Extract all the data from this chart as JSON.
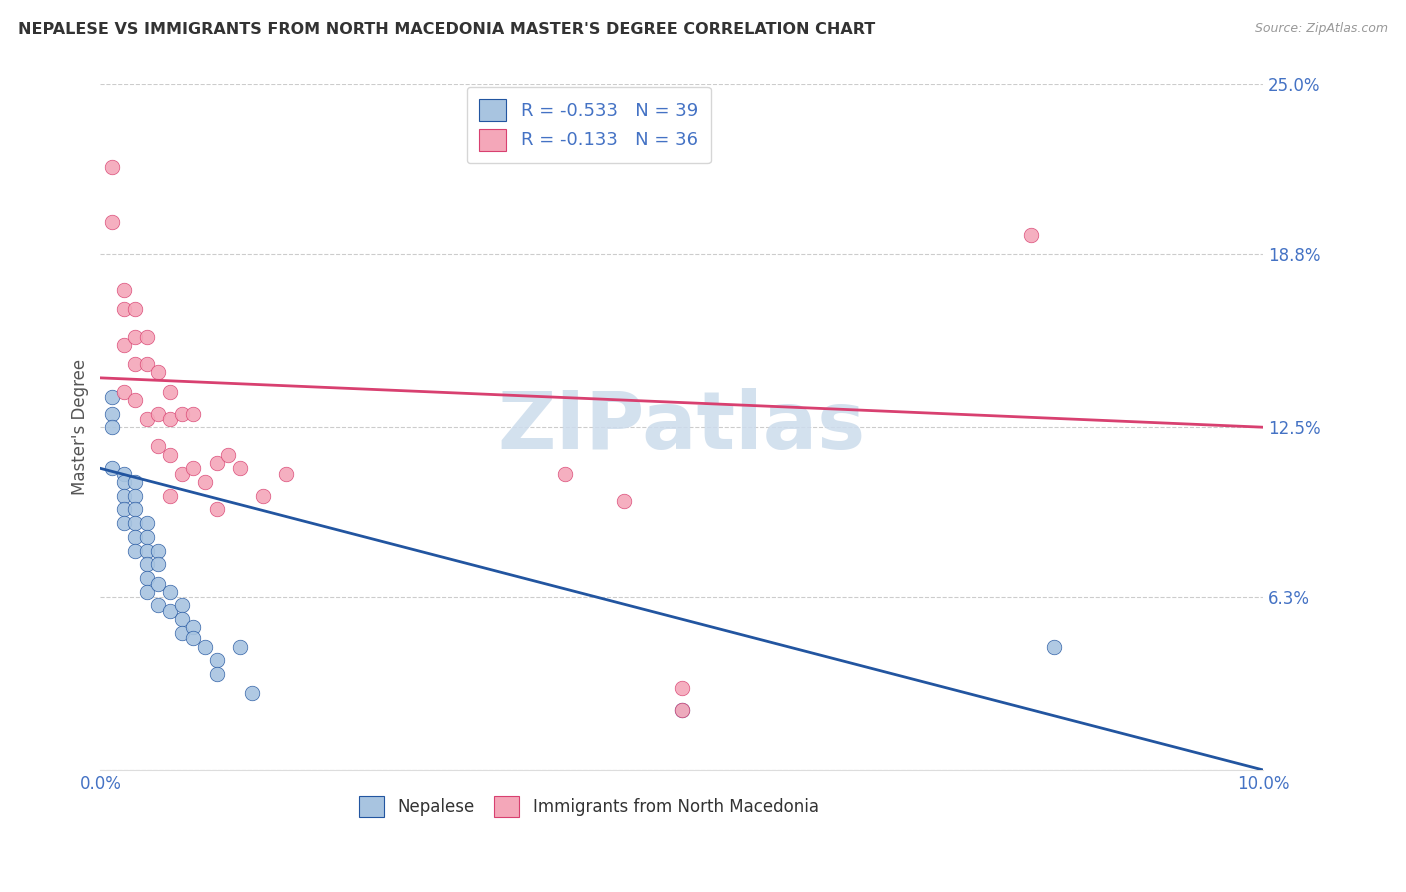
{
  "title": "NEPALESE VS IMMIGRANTS FROM NORTH MACEDONIA MASTER'S DEGREE CORRELATION CHART",
  "source": "Source: ZipAtlas.com",
  "ylabel": "Master's Degree",
  "xlim": [
    0.0,
    0.1
  ],
  "ylim": [
    0.0,
    0.25
  ],
  "xticks": [
    0.0,
    0.02,
    0.04,
    0.06,
    0.08,
    0.1
  ],
  "xtick_labels": [
    "0.0%",
    "",
    "",
    "",
    "",
    "10.0%"
  ],
  "yticks": [
    0.0,
    0.063,
    0.125,
    0.188,
    0.25
  ],
  "ytick_labels": [
    "",
    "6.3%",
    "12.5%",
    "18.8%",
    "25.0%"
  ],
  "blue_label": "Nepalese",
  "pink_label": "Immigrants from North Macedonia",
  "blue_R": -0.533,
  "blue_N": 39,
  "pink_R": -0.133,
  "pink_N": 36,
  "blue_color": "#a8c4e0",
  "pink_color": "#f4a7b9",
  "blue_line_color": "#2255a0",
  "pink_line_color": "#d84070",
  "tick_color": "#4472c4",
  "title_color": "#333333",
  "source_color": "#999999",
  "watermark": "ZIPatlas",
  "blue_line_x": [
    0.0,
    0.1
  ],
  "blue_line_y": [
    0.11,
    0.0
  ],
  "pink_line_x": [
    0.0,
    0.1
  ],
  "pink_line_y": [
    0.143,
    0.125
  ],
  "blue_x": [
    0.001,
    0.001,
    0.001,
    0.001,
    0.002,
    0.002,
    0.002,
    0.002,
    0.002,
    0.003,
    0.003,
    0.003,
    0.003,
    0.003,
    0.003,
    0.004,
    0.004,
    0.004,
    0.004,
    0.004,
    0.004,
    0.005,
    0.005,
    0.005,
    0.005,
    0.006,
    0.006,
    0.007,
    0.007,
    0.007,
    0.008,
    0.008,
    0.009,
    0.01,
    0.01,
    0.012,
    0.013,
    0.05,
    0.082
  ],
  "blue_y": [
    0.136,
    0.13,
    0.125,
    0.11,
    0.108,
    0.105,
    0.1,
    0.095,
    0.09,
    0.105,
    0.1,
    0.095,
    0.09,
    0.085,
    0.08,
    0.09,
    0.085,
    0.08,
    0.075,
    0.07,
    0.065,
    0.08,
    0.075,
    0.068,
    0.06,
    0.065,
    0.058,
    0.06,
    0.055,
    0.05,
    0.052,
    0.048,
    0.045,
    0.04,
    0.035,
    0.045,
    0.028,
    0.022,
    0.045
  ],
  "pink_x": [
    0.001,
    0.001,
    0.002,
    0.002,
    0.002,
    0.002,
    0.003,
    0.003,
    0.003,
    0.003,
    0.004,
    0.004,
    0.004,
    0.005,
    0.005,
    0.005,
    0.006,
    0.006,
    0.006,
    0.006,
    0.007,
    0.007,
    0.008,
    0.008,
    0.009,
    0.01,
    0.01,
    0.011,
    0.012,
    0.014,
    0.016,
    0.04,
    0.045,
    0.05,
    0.05,
    0.08
  ],
  "pink_y": [
    0.22,
    0.2,
    0.175,
    0.168,
    0.155,
    0.138,
    0.168,
    0.158,
    0.148,
    0.135,
    0.158,
    0.148,
    0.128,
    0.145,
    0.13,
    0.118,
    0.138,
    0.128,
    0.115,
    0.1,
    0.13,
    0.108,
    0.13,
    0.11,
    0.105,
    0.112,
    0.095,
    0.115,
    0.11,
    0.1,
    0.108,
    0.108,
    0.098,
    0.03,
    0.022,
    0.195
  ]
}
